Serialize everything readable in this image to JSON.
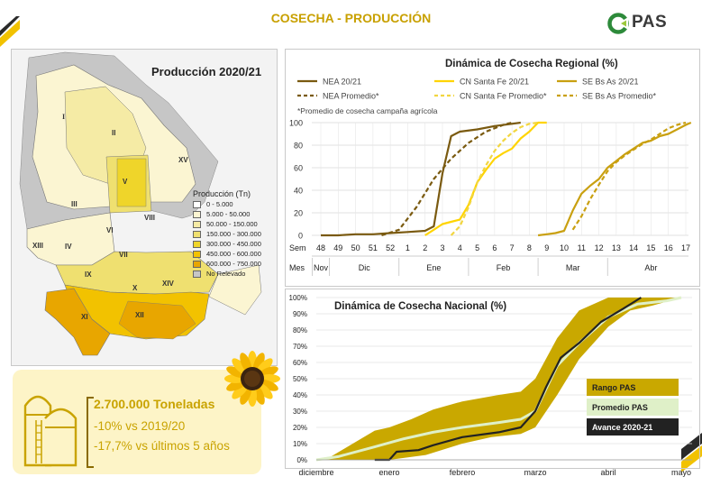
{
  "header": {
    "title": "COSECHA - PRODUCCIÓN",
    "logo_text": "PAS"
  },
  "map": {
    "title": "Producción 2020/21",
    "legend_title": "Producción (Tn)",
    "legend": [
      {
        "label": "0 - 5.000",
        "color": "#ffffff"
      },
      {
        "label": "5.000 - 50.000",
        "color": "#fbf5d2"
      },
      {
        "label": "50.000 - 150.000",
        "color": "#f5eba5"
      },
      {
        "label": "150.000 - 300.000",
        "color": "#efe070"
      },
      {
        "label": "300.000 - 450.000",
        "color": "#efd52a"
      },
      {
        "label": "450.000 - 600.000",
        "color": "#f2c200"
      },
      {
        "label": "600.000 - 750.000",
        "color": "#e8a600"
      },
      {
        "label": "No Relevado",
        "color": "#c6c6c6"
      }
    ],
    "regions": [
      "I",
      "II",
      "III",
      "IV",
      "V",
      "VI",
      "VII",
      "VIII",
      "IX",
      "X",
      "XI",
      "XII",
      "XIII",
      "XIV",
      "XV"
    ]
  },
  "chart_data": [
    {
      "type": "line",
      "title": "Dinámica de Cosecha Regional (%)",
      "footnote": "*Promedio de cosecha campaña agrícola",
      "ylim": [
        0,
        100
      ],
      "yticks": [
        0,
        20,
        40,
        60,
        80,
        100
      ],
      "x_row_label": "Sem",
      "month_row_label": "Mes",
      "weeks": [
        "48",
        "49",
        "50",
        "51",
        "52",
        "1",
        "2",
        "3",
        "4",
        "5",
        "6",
        "7",
        "8",
        "9",
        "10",
        "11",
        "12",
        "13",
        "14",
        "15",
        "16",
        "17"
      ],
      "months": [
        {
          "label": "Nov",
          "from": 0,
          "to": 0
        },
        {
          "label": "Dic",
          "from": 1,
          "to": 4
        },
        {
          "label": "Ene",
          "from": 5,
          "to": 8
        },
        {
          "label": "Feb",
          "from": 9,
          "to": 12
        },
        {
          "label": "Mar",
          "from": 13,
          "to": 16
        },
        {
          "label": "Abr",
          "from": 17,
          "to": 21
        }
      ],
      "series": [
        {
          "name": "NEA 20/21",
          "color": "#7a5a10",
          "dash": false,
          "points": [
            [
              0,
              0
            ],
            [
              1,
              0
            ],
            [
              2,
              1
            ],
            [
              3,
              1
            ],
            [
              4,
              2
            ],
            [
              5,
              3
            ],
            [
              6,
              4
            ],
            [
              6.5,
              8
            ],
            [
              7,
              55
            ],
            [
              7.5,
              88
            ],
            [
              8,
              92
            ],
            [
              9,
              94
            ],
            [
              10,
              97
            ],
            [
              11,
              99
            ],
            [
              11.5,
              100
            ]
          ]
        },
        {
          "name": "NEA Promedio*",
          "color": "#7a5a10",
          "dash": true,
          "points": [
            [
              3.5,
              0
            ],
            [
              4.5,
              5
            ],
            [
              5.5,
              25
            ],
            [
              6.5,
              50
            ],
            [
              7.5,
              68
            ],
            [
              8.5,
              82
            ],
            [
              9.5,
              92
            ],
            [
              10.5,
              98
            ],
            [
              11,
              100
            ]
          ]
        },
        {
          "name": "CN Santa Fe 20/21",
          "color": "#ffd400",
          "dash": false,
          "points": [
            [
              6,
              0
            ],
            [
              6.5,
              5
            ],
            [
              7,
              10
            ],
            [
              7.5,
              12
            ],
            [
              8,
              14
            ],
            [
              8.5,
              27
            ],
            [
              9,
              47
            ],
            [
              9.5,
              58
            ],
            [
              10,
              68
            ],
            [
              10.5,
              73
            ],
            [
              11,
              77
            ],
            [
              11.5,
              86
            ],
            [
              12,
              92
            ],
            [
              12.5,
              100
            ],
            [
              13,
              100
            ]
          ]
        },
        {
          "name": "CN Santa Fe Promedio*",
          "color": "#f2d640",
          "dash": true,
          "points": [
            [
              7.5,
              0
            ],
            [
              8,
              8
            ],
            [
              8.5,
              25
            ],
            [
              9,
              47
            ],
            [
              9.5,
              62
            ],
            [
              10,
              75
            ],
            [
              10.5,
              84
            ],
            [
              11,
              91
            ],
            [
              11.5,
              96
            ],
            [
              12,
              99
            ],
            [
              12.5,
              100
            ]
          ]
        },
        {
          "name": "SE Bs As 20/21",
          "color": "#c9a010",
          "dash": false,
          "points": [
            [
              12.5,
              0
            ],
            [
              13,
              1
            ],
            [
              13.5,
              2
            ],
            [
              14,
              4
            ],
            [
              14.5,
              22
            ],
            [
              15,
              37
            ],
            [
              15.5,
              44
            ],
            [
              16,
              50
            ],
            [
              16.5,
              60
            ],
            [
              17,
              66
            ],
            [
              17.5,
              72
            ],
            [
              18,
              77
            ],
            [
              18.5,
              82
            ],
            [
              19,
              84
            ],
            [
              19.5,
              88
            ],
            [
              20,
              90
            ],
            [
              20.5,
              94
            ],
            [
              21,
              98
            ],
            [
              21.3,
              100
            ]
          ]
        },
        {
          "name": "SE Bs As Promedio*",
          "color": "#c9a010",
          "dash": true,
          "points": [
            [
              14.5,
              5
            ],
            [
              15,
              17
            ],
            [
              15.5,
              32
            ],
            [
              16,
              45
            ],
            [
              16.5,
              57
            ],
            [
              17,
              65
            ],
            [
              17.5,
              71
            ],
            [
              18,
              76
            ],
            [
              18.5,
              81
            ],
            [
              19,
              85
            ],
            [
              19.5,
              90
            ],
            [
              20,
              95
            ],
            [
              20.5,
              98
            ],
            [
              21,
              100
            ]
          ]
        }
      ]
    },
    {
      "type": "area",
      "title": "Dinámica de Cosecha Nacional (%)",
      "ylim": [
        0,
        100
      ],
      "yticks": [
        "0%",
        "10%",
        "20%",
        "30%",
        "40%",
        "50%",
        "60%",
        "70%",
        "80%",
        "90%",
        "100%"
      ],
      "months": [
        "diciembre",
        "enero",
        "febrero",
        "marzo",
        "abril",
        "mayo"
      ],
      "series": [
        {
          "name": "Rango PAS",
          "color": "#c9a800",
          "upper": [
            [
              0,
              0
            ],
            [
              0.2,
              2
            ],
            [
              0.5,
              10
            ],
            [
              0.8,
              18
            ],
            [
              1.0,
              20
            ],
            [
              1.3,
              25
            ],
            [
              1.6,
              31
            ],
            [
              2.0,
              36
            ],
            [
              2.5,
              40
            ],
            [
              2.8,
              42
            ],
            [
              3.0,
              50
            ],
            [
              3.3,
              75
            ],
            [
              3.6,
              92
            ],
            [
              4.0,
              100
            ],
            [
              5.0,
              100
            ]
          ],
          "lower": [
            [
              0,
              0
            ],
            [
              0.5,
              0
            ],
            [
              1.0,
              0
            ],
            [
              1.5,
              3
            ],
            [
              2.0,
              10
            ],
            [
              2.4,
              14
            ],
            [
              2.8,
              16
            ],
            [
              3.0,
              20
            ],
            [
              3.3,
              40
            ],
            [
              3.6,
              62
            ],
            [
              4.0,
              82
            ],
            [
              4.3,
              92
            ],
            [
              4.6,
              95
            ],
            [
              5.0,
              100
            ]
          ]
        },
        {
          "name": "Promedio PAS",
          "color": "#dff0c8",
          "points": [
            [
              0,
              0
            ],
            [
              0.3,
              2
            ],
            [
              0.8,
              8
            ],
            [
              1.2,
              13
            ],
            [
              1.6,
              17
            ],
            [
              2.0,
              20
            ],
            [
              2.5,
              23
            ],
            [
              2.8,
              25
            ],
            [
              3.0,
              30
            ],
            [
              3.3,
              58
            ],
            [
              3.6,
              72
            ],
            [
              4.0,
              88
            ],
            [
              4.4,
              96
            ],
            [
              4.8,
              98
            ],
            [
              5.0,
              100
            ]
          ]
        },
        {
          "name": "Avance 2020-21",
          "color": "#222222",
          "points": [
            [
              0.8,
              0
            ],
            [
              1.0,
              0
            ],
            [
              1.1,
              5
            ],
            [
              1.4,
              6
            ],
            [
              1.6,
              9
            ],
            [
              2.0,
              14
            ],
            [
              2.5,
              17
            ],
            [
              2.8,
              20
            ],
            [
              3.0,
              30
            ],
            [
              3.15,
              45
            ],
            [
              3.35,
              63
            ],
            [
              3.6,
              72
            ],
            [
              3.9,
              85
            ],
            [
              4.2,
              93
            ],
            [
              4.45,
              100
            ]
          ]
        }
      ]
    }
  ],
  "stats": {
    "main": "2.700.000 Toneladas",
    "line1": "-10% vs 2019/20",
    "line2": "-17,7% vs últimos 5 años"
  }
}
